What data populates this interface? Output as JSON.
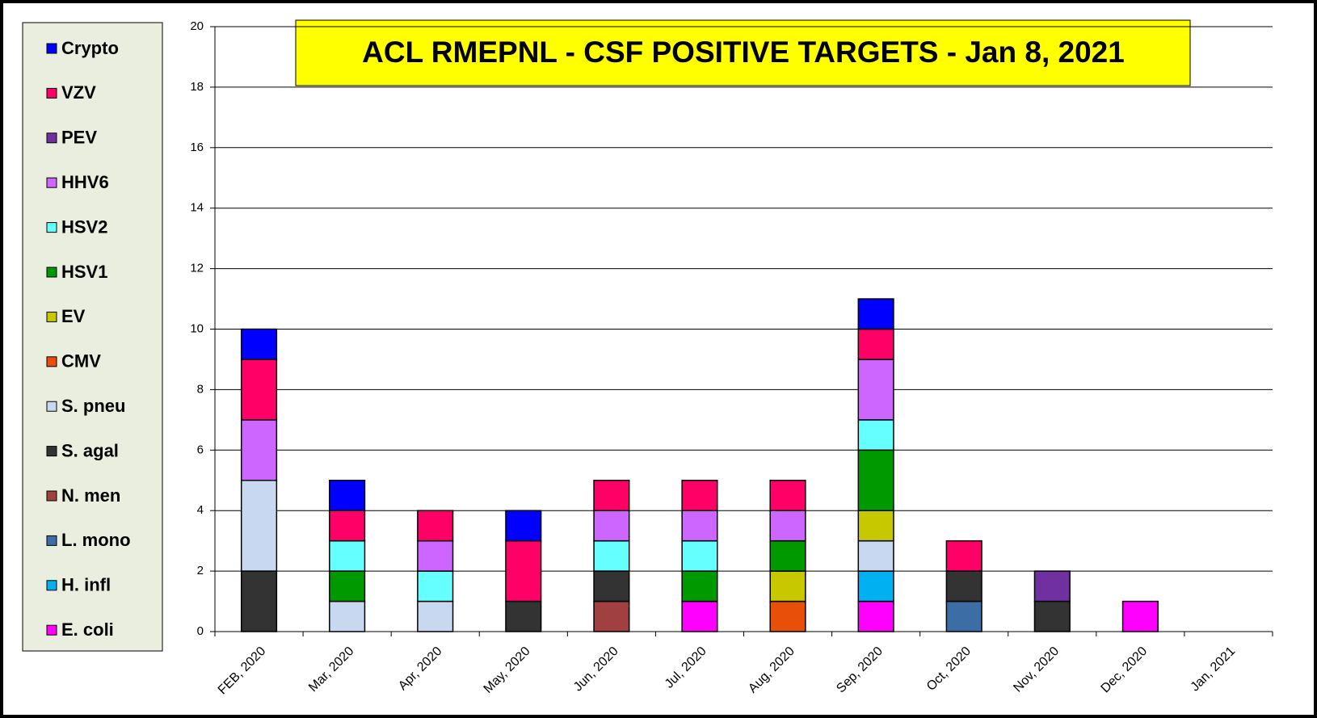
{
  "chart_data": {
    "type": "stacked_bar",
    "title": "ACL RMEPNL - CSF POSITIVE TARGETS - Jan 8, 2021",
    "categories": [
      "FEB, 2020",
      "Mar, 2020",
      "Apr, 2020",
      "May, 2020",
      "Jun, 2020",
      "Jul, 2020",
      "Aug, 2020",
      "Sep, 2020",
      "Oct, 2020",
      "Nov, 2020",
      "Dec, 2020",
      "Jan, 2021"
    ],
    "series": [
      {
        "name": "E. coli",
        "color": "#ff00ff",
        "values": [
          0,
          0,
          0,
          0,
          0,
          1,
          0,
          1,
          0,
          0,
          1,
          0
        ]
      },
      {
        "name": "H. infl",
        "color": "#00b0f0",
        "values": [
          0,
          0,
          0,
          0,
          0,
          0,
          0,
          1,
          0,
          0,
          0,
          0
        ]
      },
      {
        "name": "L. mono",
        "color": "#3c6ea5",
        "values": [
          0,
          0,
          0,
          0,
          0,
          0,
          0,
          0,
          1,
          0,
          0,
          0
        ]
      },
      {
        "name": "N. men",
        "color": "#a04040",
        "values": [
          0,
          0,
          0,
          0,
          1,
          0,
          0,
          0,
          0,
          0,
          0,
          0
        ]
      },
      {
        "name": "S. agal",
        "color": "#333333",
        "values": [
          2,
          0,
          0,
          1,
          1,
          0,
          0,
          0,
          1,
          1,
          0,
          0
        ]
      },
      {
        "name": "S. pneu",
        "color": "#c8d8f0",
        "values": [
          3,
          1,
          1,
          0,
          0,
          0,
          0,
          1,
          0,
          0,
          0,
          0
        ]
      },
      {
        "name": "CMV",
        "color": "#e8500a",
        "values": [
          0,
          0,
          0,
          0,
          0,
          0,
          1,
          0,
          0,
          0,
          0,
          0
        ]
      },
      {
        "name": "EV",
        "color": "#c8c800",
        "values": [
          0,
          0,
          0,
          0,
          0,
          0,
          1,
          1,
          0,
          0,
          0,
          0
        ]
      },
      {
        "name": "HSV1",
        "color": "#009900",
        "values": [
          0,
          1,
          0,
          0,
          0,
          1,
          1,
          2,
          0,
          0,
          0,
          0
        ]
      },
      {
        "name": "HSV2",
        "color": "#66ffff",
        "values": [
          0,
          1,
          1,
          0,
          1,
          1,
          0,
          1,
          0,
          0,
          0,
          0
        ]
      },
      {
        "name": "HHV6",
        "color": "#cc66ff",
        "values": [
          2,
          0,
          1,
          0,
          1,
          1,
          1,
          2,
          0,
          0,
          0,
          0
        ]
      },
      {
        "name": "PEV",
        "color": "#7030a0",
        "values": [
          0,
          0,
          0,
          0,
          0,
          0,
          0,
          0,
          0,
          1,
          0,
          0
        ]
      },
      {
        "name": "VZV",
        "color": "#ff0066",
        "values": [
          2,
          1,
          1,
          2,
          1,
          1,
          1,
          1,
          1,
          0,
          0,
          0
        ]
      },
      {
        "name": "Crypto",
        "color": "#0000ff",
        "values": [
          1,
          1,
          0,
          1,
          0,
          0,
          0,
          1,
          0,
          0,
          0,
          0
        ]
      }
    ],
    "ylim": [
      0,
      20
    ],
    "yticks": [
      0,
      2,
      4,
      6,
      8,
      10,
      12,
      14,
      16,
      18,
      20
    ],
    "grid": true
  }
}
